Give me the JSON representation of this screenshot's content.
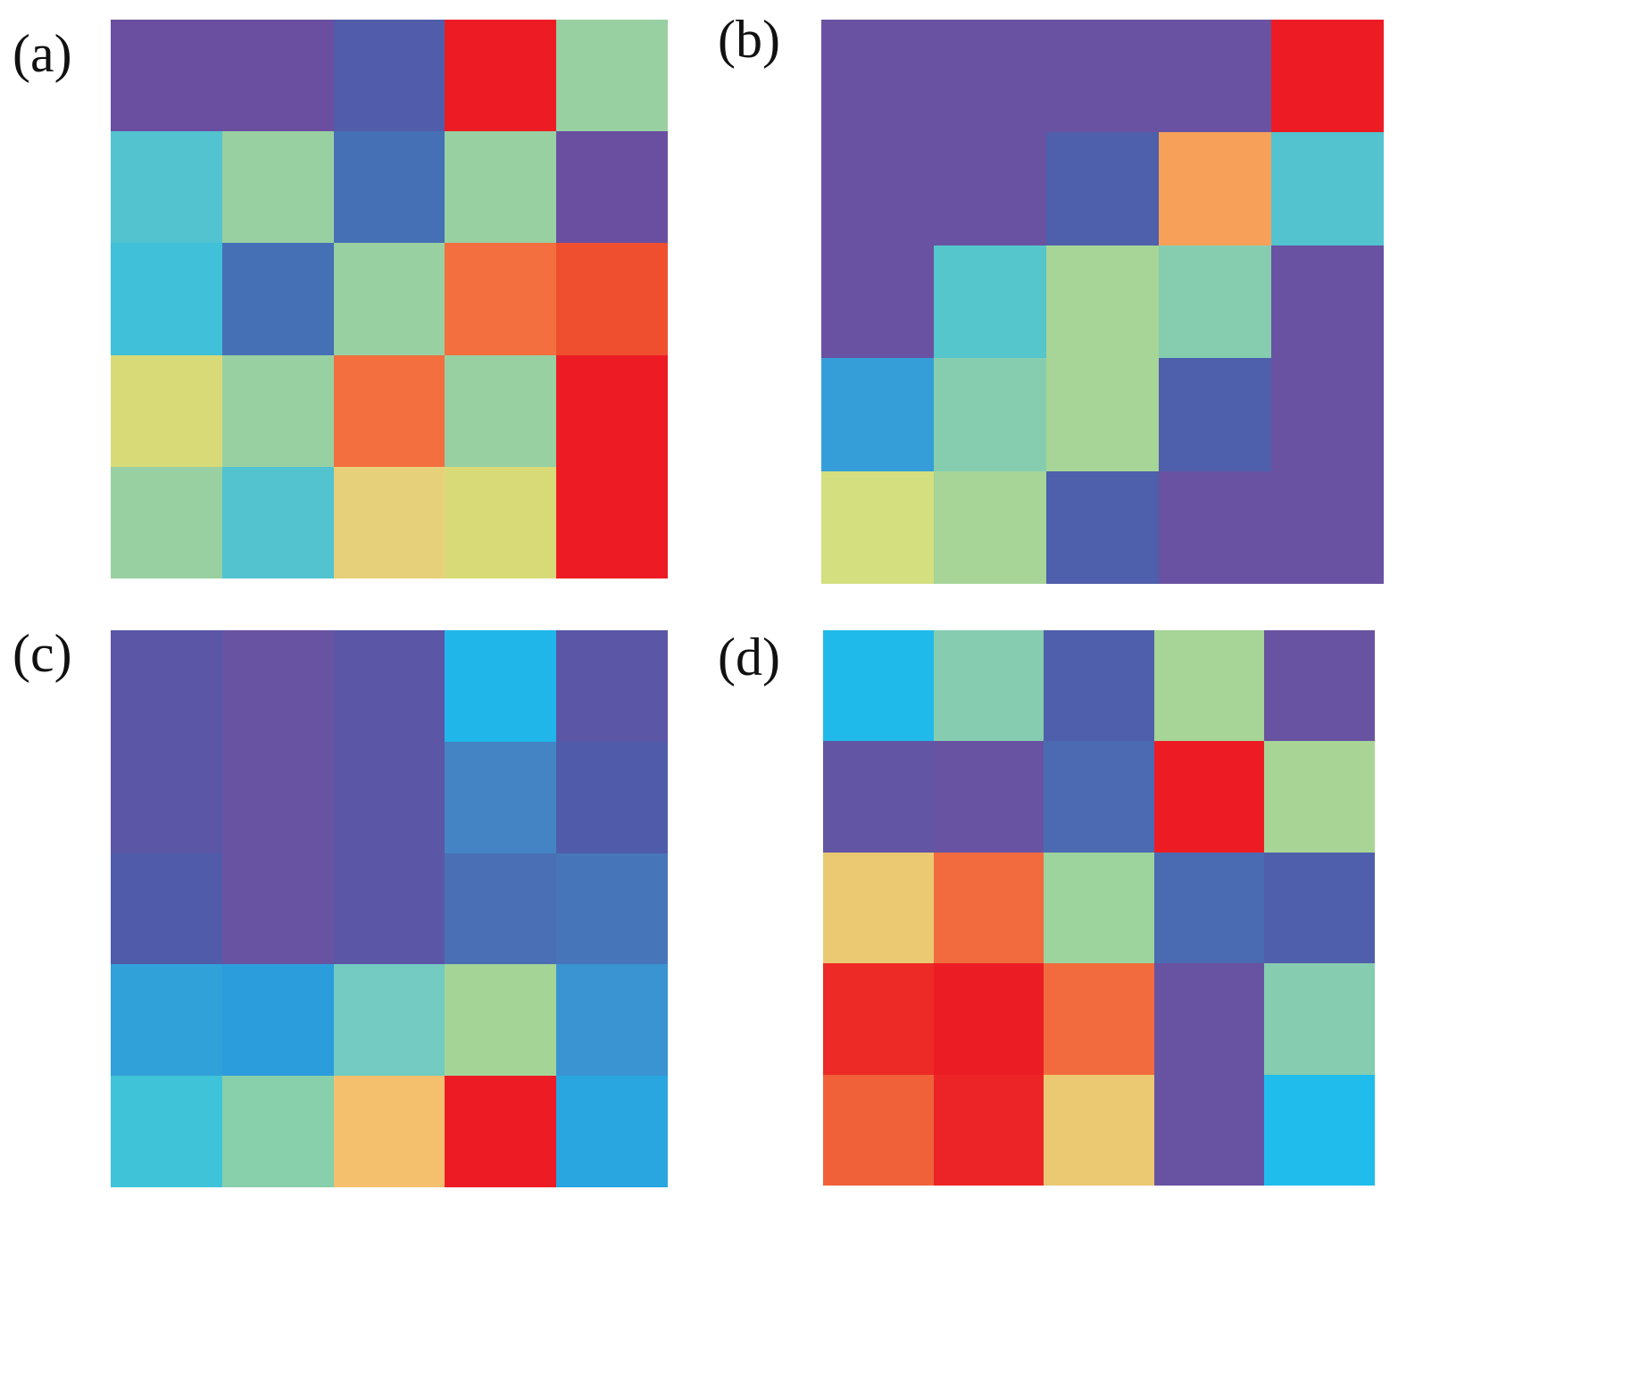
{
  "chart_data": [
    {
      "type": "heatmap",
      "label": "(a)",
      "rows": 5,
      "cols": 5,
      "colors": [
        [
          "#6a4fa0",
          "#6a4fa0",
          "#515cab",
          "#ed1c24",
          "#98d0a2"
        ],
        [
          "#52c3cf",
          "#98d0a2",
          "#4670b5",
          "#98d0a2",
          "#6a4fa0"
        ],
        [
          "#40c0d9",
          "#4670b5",
          "#98d0a2",
          "#f36f3f",
          "#ef4f2f"
        ],
        [
          "#d8da78",
          "#98d0a2",
          "#f36f3f",
          "#98d0a2",
          "#ed1c24"
        ],
        [
          "#98d0a2",
          "#52c3cf",
          "#e6d17a",
          "#d8da78",
          "#ed1c24"
        ]
      ]
    },
    {
      "type": "heatmap",
      "label": "(b)",
      "rows": 5,
      "cols": 5,
      "colors": [
        [
          "#6a52a2",
          "#6a52a2",
          "#6a52a2",
          "#6a52a2",
          "#ed1c24"
        ],
        [
          "#6a52a2",
          "#6a52a2",
          "#4e5fab",
          "#f6a05a",
          "#52c3cf"
        ],
        [
          "#6a52a2",
          "#55c6cc",
          "#a6d597",
          "#86cdb0",
          "#6a52a2"
        ],
        [
          "#359ed8",
          "#86cdb0",
          "#a6d597",
          "#4e5fab",
          "#6a52a2"
        ],
        [
          "#d4df80",
          "#a6d597",
          "#4e5fab",
          "#6a52a2",
          "#6a52a2"
        ]
      ]
    },
    {
      "type": "heatmap",
      "label": "(c)",
      "rows": 5,
      "cols": 5,
      "colors": [
        [
          "#5b57a6",
          "#6853a2",
          "#5b57a6",
          "#20b6ea",
          "#5b57a6"
        ],
        [
          "#5b57a6",
          "#6853a2",
          "#5b57a6",
          "#4484c4",
          "#505ca9"
        ],
        [
          "#505ca9",
          "#6853a2",
          "#5b57a6",
          "#4a6fb5",
          "#4676b9"
        ],
        [
          "#31a1da",
          "#2b9ddc",
          "#73cbc1",
          "#a5d596",
          "#3a94d1"
        ],
        [
          "#3fc3d9",
          "#88cfac",
          "#f4c06e",
          "#ed1c24",
          "#29a6df"
        ]
      ]
    },
    {
      "type": "heatmap",
      "label": "(d)",
      "rows": 5,
      "cols": 5,
      "colors": [
        [
          "#20baea",
          "#86ccb0",
          "#4f5fab",
          "#a6d597",
          "#6853a2"
        ],
        [
          "#6155a4",
          "#6853a2",
          "#4b6ab2",
          "#ed1c24",
          "#a8d595"
        ],
        [
          "#ebc872",
          "#f16b3e",
          "#9dd39c",
          "#4a6ab2",
          "#4f5fab"
        ],
        [
          "#ed2a26",
          "#ec1c24",
          "#f16b3e",
          "#6853a2",
          "#86ccb0"
        ],
        [
          "#f06139",
          "#ec2427",
          "#ebc872",
          "#6853a2",
          "#20bceb"
        ]
      ]
    }
  ]
}
